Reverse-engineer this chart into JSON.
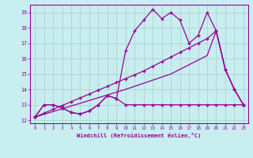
{
  "xlabel": "Windchill (Refroidissement éolien,°C)",
  "bg_color": "#c8eef0",
  "line_color": "#990099",
  "grid_color": "#aacccc",
  "xlim": [
    -0.5,
    23.5
  ],
  "ylim": [
    11.8,
    19.5
  ],
  "xticks": [
    0,
    1,
    2,
    3,
    4,
    5,
    6,
    7,
    8,
    9,
    10,
    11,
    12,
    13,
    14,
    15,
    16,
    17,
    18,
    19,
    20,
    21,
    22,
    23
  ],
  "yticks": [
    12,
    13,
    14,
    15,
    16,
    17,
    18,
    19
  ],
  "series_main_x": [
    0,
    1,
    2,
    3,
    4,
    5,
    6,
    7,
    8,
    9,
    10,
    11,
    12,
    13,
    14,
    15,
    16,
    17,
    18,
    19,
    20,
    21,
    22,
    23
  ],
  "series_main_y": [
    12.2,
    13.0,
    13.0,
    12.8,
    12.5,
    12.4,
    12.6,
    13.0,
    13.6,
    13.4,
    16.5,
    17.8,
    18.5,
    19.2,
    18.6,
    19.0,
    18.5,
    17.0,
    17.5,
    19.0,
    17.8,
    15.3,
    14.0,
    13.0
  ],
  "series_diag1_x": [
    0,
    1,
    2,
    3,
    4,
    5,
    6,
    7,
    8,
    9,
    10,
    11,
    12,
    13,
    14,
    15,
    16,
    17,
    18,
    19,
    20,
    21,
    22,
    23
  ],
  "series_diag1_y": [
    12.2,
    12.45,
    12.7,
    12.95,
    13.2,
    13.45,
    13.7,
    13.95,
    14.2,
    14.45,
    14.7,
    14.95,
    15.2,
    15.5,
    15.8,
    16.1,
    16.4,
    16.7,
    17.0,
    17.3,
    17.8,
    15.3,
    14.0,
    13.0
  ],
  "series_diag2_x": [
    0,
    1,
    2,
    3,
    4,
    5,
    6,
    7,
    8,
    9,
    10,
    11,
    12,
    13,
    14,
    15,
    16,
    17,
    18,
    19,
    20,
    21,
    22,
    23
  ],
  "series_diag2_y": [
    12.2,
    12.38,
    12.56,
    12.74,
    12.92,
    13.1,
    13.28,
    13.46,
    13.64,
    13.82,
    14.0,
    14.2,
    14.4,
    14.6,
    14.8,
    15.0,
    15.3,
    15.6,
    15.9,
    16.2,
    17.8,
    15.3,
    14.0,
    13.0
  ],
  "series_flat_x": [
    0,
    1,
    2,
    3,
    4,
    5,
    6,
    7,
    8,
    9,
    10,
    11,
    12,
    13,
    14,
    15,
    16,
    17,
    18,
    19,
    20,
    21,
    22,
    23
  ],
  "series_flat_y": [
    12.2,
    13.0,
    13.0,
    12.8,
    12.5,
    12.4,
    12.6,
    13.0,
    13.6,
    13.4,
    13.0,
    13.0,
    13.0,
    13.0,
    13.0,
    13.0,
    13.0,
    13.0,
    13.0,
    13.0,
    13.0,
    13.0,
    13.0,
    13.0
  ]
}
